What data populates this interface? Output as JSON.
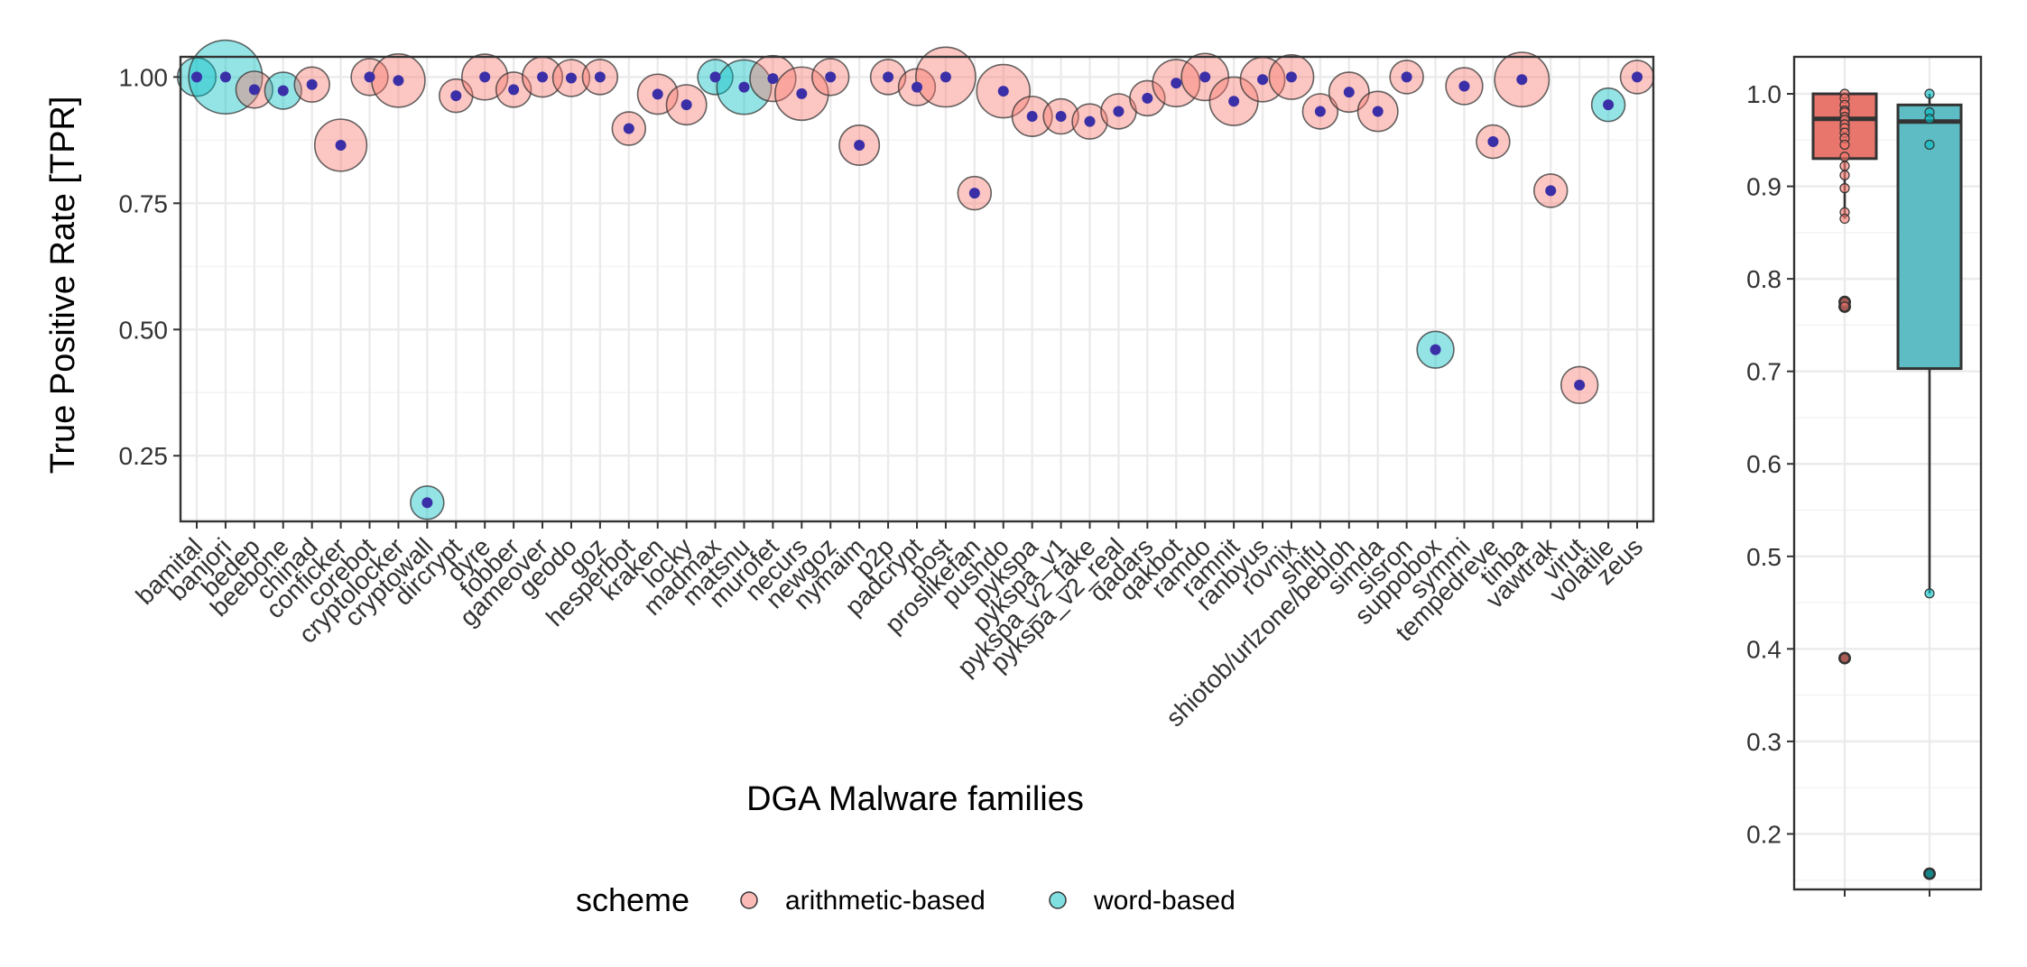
{
  "colors": {
    "arithmetic": "#f8766d",
    "word": "#00bfc4",
    "dot": "#3b2fa8",
    "box_arith_fill": "#e8766d",
    "box_word_fill": "#5ebcc4",
    "panel_border": "#333333",
    "grid": "#ebebeb"
  },
  "chart_data": [
    {
      "type": "scatter",
      "title": "",
      "xlabel": "DGA Malware families",
      "ylabel": "True Positive Rate [TPR]",
      "ylim": [
        0.12,
        1.04
      ],
      "yticks": [
        0.25,
        0.5,
        0.75,
        1.0
      ],
      "ytick_labels": [
        "0.25",
        "0.50",
        "0.75",
        "1.00"
      ],
      "grid": true,
      "legend": {
        "title": "scheme",
        "position": "bottom",
        "entries": [
          "arithmetic-based",
          "word-based"
        ]
      },
      "points": [
        {
          "family": "bamital",
          "tpr": 1.0,
          "scheme": "word",
          "size": 0.6
        },
        {
          "family": "banjori",
          "tpr": 1.0,
          "scheme": "word",
          "size": 2.2
        },
        {
          "family": "bedep",
          "tpr": 0.975,
          "scheme": "arithmetic",
          "size": 0.55
        },
        {
          "family": "beebone",
          "tpr": 0.973,
          "scheme": "word",
          "size": 0.55
        },
        {
          "family": "chinad",
          "tpr": 0.985,
          "scheme": "arithmetic",
          "size": 0.5
        },
        {
          "family": "conficker",
          "tpr": 0.865,
          "scheme": "arithmetic",
          "size": 1.1
        },
        {
          "family": "corebot",
          "tpr": 1.0,
          "scheme": "arithmetic",
          "size": 0.55
        },
        {
          "family": "cryptolocker",
          "tpr": 0.993,
          "scheme": "arithmetic",
          "size": 1.15
        },
        {
          "family": "cryptowall",
          "tpr": 0.157,
          "scheme": "word",
          "size": 0.45
        },
        {
          "family": "dircrypt",
          "tpr": 0.963,
          "scheme": "arithmetic",
          "size": 0.45
        },
        {
          "family": "dyre",
          "tpr": 1.0,
          "scheme": "arithmetic",
          "size": 0.85
        },
        {
          "family": "fobber",
          "tpr": 0.975,
          "scheme": "arithmetic",
          "size": 0.5
        },
        {
          "family": "gameover",
          "tpr": 1.0,
          "scheme": "arithmetic",
          "size": 0.65
        },
        {
          "family": "geodo",
          "tpr": 0.998,
          "scheme": "arithmetic",
          "size": 0.55
        },
        {
          "family": "goz",
          "tpr": 1.0,
          "scheme": "arithmetic",
          "size": 0.5
        },
        {
          "family": "hesperbot",
          "tpr": 0.898,
          "scheme": "arithmetic",
          "size": 0.45
        },
        {
          "family": "kraken",
          "tpr": 0.966,
          "scheme": "arithmetic",
          "size": 0.65
        },
        {
          "family": "locky",
          "tpr": 0.945,
          "scheme": "arithmetic",
          "size": 0.65
        },
        {
          "family": "madmax",
          "tpr": 1.0,
          "scheme": "word",
          "size": 0.5
        },
        {
          "family": "matsnu",
          "tpr": 0.98,
          "scheme": "word",
          "size": 1.2
        },
        {
          "family": "murofet",
          "tpr": 0.997,
          "scheme": "arithmetic",
          "size": 0.85
        },
        {
          "family": "necurs",
          "tpr": 0.967,
          "scheme": "arithmetic",
          "size": 1.15
        },
        {
          "family": "newgoz",
          "tpr": 1.0,
          "scheme": "arithmetic",
          "size": 0.55
        },
        {
          "family": "nymaim",
          "tpr": 0.865,
          "scheme": "arithmetic",
          "size": 0.65
        },
        {
          "family": "p2p",
          "tpr": 1.0,
          "scheme": "arithmetic",
          "size": 0.5
        },
        {
          "family": "padcrypt",
          "tpr": 0.98,
          "scheme": "arithmetic",
          "size": 0.55
        },
        {
          "family": "post",
          "tpr": 1.0,
          "scheme": "arithmetic",
          "size": 1.45
        },
        {
          "family": "proslikefan",
          "tpr": 0.77,
          "scheme": "arithmetic",
          "size": 0.45
        },
        {
          "family": "pushdo",
          "tpr": 0.972,
          "scheme": "arithmetic",
          "size": 1.15
        },
        {
          "family": "pykspa",
          "tpr": 0.922,
          "scheme": "arithmetic",
          "size": 0.65
        },
        {
          "family": "pykspa_v1",
          "tpr": 0.922,
          "scheme": "arithmetic",
          "size": 0.5
        },
        {
          "family": "pykspa_v2_fake",
          "tpr": 0.912,
          "scheme": "arithmetic",
          "size": 0.5
        },
        {
          "family": "pykspa_v2_real",
          "tpr": 0.932,
          "scheme": "arithmetic",
          "size": 0.5
        },
        {
          "family": "qadars",
          "tpr": 0.958,
          "scheme": "arithmetic",
          "size": 0.5
        },
        {
          "family": "qakbot",
          "tpr": 0.988,
          "scheme": "arithmetic",
          "size": 0.9
        },
        {
          "family": "ramdo",
          "tpr": 1.0,
          "scheme": "arithmetic",
          "size": 0.9
        },
        {
          "family": "ramnit",
          "tpr": 0.952,
          "scheme": "arithmetic",
          "size": 0.95
        },
        {
          "family": "ranbyus",
          "tpr": 0.995,
          "scheme": "arithmetic",
          "size": 0.8
        },
        {
          "family": "rovnix",
          "tpr": 1.0,
          "scheme": "arithmetic",
          "size": 0.8
        },
        {
          "family": "shifu",
          "tpr": 0.932,
          "scheme": "arithmetic",
          "size": 0.5
        },
        {
          "family": "shiotob/urlzone/bebloh",
          "tpr": 0.97,
          "scheme": "arithmetic",
          "size": 0.65
        },
        {
          "family": "simda",
          "tpr": 0.932,
          "scheme": "arithmetic",
          "size": 0.65
        },
        {
          "family": "sisron",
          "tpr": 1.0,
          "scheme": "arithmetic",
          "size": 0.45
        },
        {
          "family": "suppobox",
          "tpr": 0.46,
          "scheme": "word",
          "size": 0.55
        },
        {
          "family": "symmi",
          "tpr": 0.982,
          "scheme": "arithmetic",
          "size": 0.55
        },
        {
          "family": "tempedreve",
          "tpr": 0.872,
          "scheme": "arithmetic",
          "size": 0.45
        },
        {
          "family": "tinba",
          "tpr": 0.995,
          "scheme": "arithmetic",
          "size": 1.2
        },
        {
          "family": "vawtrak",
          "tpr": 0.775,
          "scheme": "arithmetic",
          "size": 0.45
        },
        {
          "family": "virut",
          "tpr": 0.39,
          "scheme": "arithmetic",
          "size": 0.55
        },
        {
          "family": "volatile",
          "tpr": 0.945,
          "scheme": "word",
          "size": 0.45
        },
        {
          "family": "zeus",
          "tpr": 1.0,
          "scheme": "arithmetic",
          "size": 0.45
        }
      ]
    },
    {
      "type": "box",
      "title": "",
      "xlabel": "",
      "ylabel": "",
      "ylim": [
        0.14,
        1.04
      ],
      "yticks": [
        0.2,
        0.3,
        0.4,
        0.5,
        0.6,
        0.7,
        0.8,
        0.9,
        1.0
      ],
      "ytick_labels": [
        "0.2",
        "0.3",
        "0.4",
        "0.5",
        "0.6",
        "0.7",
        "0.8",
        "0.9",
        "1.0"
      ],
      "grid": true,
      "boxes": [
        {
          "scheme": "arithmetic",
          "q1": 0.93,
          "median": 0.973,
          "q3": 1.0,
          "whisker_low": 0.865,
          "whisker_high": 1.0,
          "outliers": [
            0.775,
            0.77,
            0.39
          ],
          "points": [
            1.0,
            0.995,
            0.988,
            0.982,
            0.98,
            0.975,
            0.972,
            0.967,
            0.963,
            0.958,
            0.952,
            0.945,
            0.932,
            0.922,
            0.912,
            0.898,
            0.872,
            0.865,
            0.775,
            0.77,
            0.39
          ]
        },
        {
          "scheme": "word",
          "q1": 0.703,
          "median": 0.97,
          "q3": 0.988,
          "whisker_low": 0.46,
          "whisker_high": 1.0,
          "outliers": [
            0.157
          ],
          "points": [
            1.0,
            0.98,
            0.973,
            0.945,
            0.46,
            0.157
          ]
        }
      ]
    }
  ]
}
